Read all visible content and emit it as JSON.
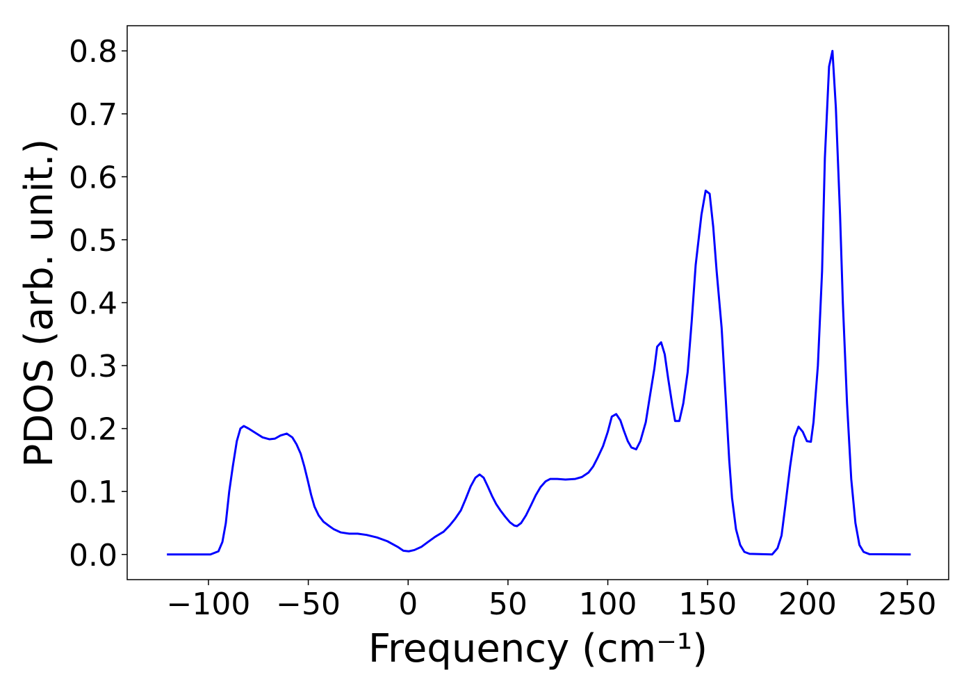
{
  "chart_data": {
    "type": "line",
    "xlabel": "Frequency (cm⁻¹)",
    "ylabel": "PDOS (arb. unit.)",
    "xlim": [
      -140.7,
      270.7
    ],
    "ylim": [
      -0.04,
      0.84
    ],
    "xticks": [
      {
        "value": -100,
        "label": "−100"
      },
      {
        "value": -50,
        "label": "−50"
      },
      0,
      50,
      100,
      150,
      200,
      250
    ],
    "yticks": [
      {
        "value": 0,
        "label": "0.0"
      },
      0.1,
      0.2,
      0.3,
      0.4,
      0.5,
      0.6,
      0.7,
      0.8
    ],
    "x": [
      -120.8,
      -99,
      -95,
      -93,
      -91.3,
      -89.6,
      -87.8,
      -85.8,
      -84,
      -82.3,
      -79.9,
      -76.4,
      -72.9,
      -69.4,
      -66.7,
      -63.9,
      -60.8,
      -58,
      -55.9,
      -53.8,
      -52,
      -50.3,
      -48.6,
      -46.9,
      -44.8,
      -42.4,
      -39.9,
      -37.2,
      -33.7,
      -29.5,
      -25.3,
      -20.8,
      -15.6,
      -10.4,
      -5.2,
      -2.4,
      0.3,
      3.1,
      6.6,
      10,
      13.5,
      17.7,
      20.8,
      23.6,
      26.4,
      28.8,
      31.3,
      33.7,
      35.8,
      37.8,
      39.9,
      42,
      44.1,
      46.2,
      48.6,
      51,
      53.1,
      54.5,
      56.6,
      59,
      61.5,
      63.9,
      66.3,
      68.8,
      71.2,
      74.7,
      78.8,
      83.7,
      87,
      90.3,
      92.7,
      94.8,
      97.6,
      100,
      102,
      104.2,
      106.3,
      108,
      110,
      111.8,
      114.2,
      116.3,
      119,
      121,
      123.3,
      124.7,
      126.7,
      128.5,
      130.2,
      132.3,
      133.7,
      135.8,
      137.8,
      140,
      142,
      144,
      146.9,
      149,
      151,
      152.8,
      154.5,
      157,
      159,
      160.8,
      162.2,
      164.2,
      166.3,
      168.4,
      171,
      182.3,
      185,
      187,
      189,
      191.3,
      193.4,
      195.5,
      197.6,
      199.7,
      201.7,
      203,
      205.2,
      207.3,
      208.7,
      210.8,
      212.5,
      214.2,
      216.3,
      217.7,
      219.8,
      221.9,
      224,
      226,
      228.1,
      231,
      251.7
    ],
    "series": [
      {
        "name": "PDOS",
        "color": "#0000ff",
        "values": [
          0,
          0,
          0.005,
          0.02,
          0.05,
          0.1,
          0.14,
          0.18,
          0.2,
          0.204,
          0.2,
          0.193,
          0.186,
          0.183,
          0.184,
          0.189,
          0.192,
          0.186,
          0.175,
          0.16,
          0.14,
          0.118,
          0.095,
          0.076,
          0.062,
          0.052,
          0.046,
          0.04,
          0.035,
          0.033,
          0.033,
          0.031,
          0.027,
          0.021,
          0.012,
          0.006,
          0.005,
          0.007,
          0.012,
          0.02,
          0.028,
          0.036,
          0.046,
          0.057,
          0.07,
          0.088,
          0.108,
          0.122,
          0.127,
          0.122,
          0.108,
          0.093,
          0.08,
          0.07,
          0.06,
          0.051,
          0.046,
          0.045,
          0.05,
          0.062,
          0.078,
          0.094,
          0.107,
          0.116,
          0.12,
          0.12,
          0.119,
          0.12,
          0.123,
          0.13,
          0.14,
          0.153,
          0.172,
          0.195,
          0.219,
          0.223,
          0.213,
          0.197,
          0.18,
          0.17,
          0.167,
          0.18,
          0.21,
          0.25,
          0.295,
          0.33,
          0.337,
          0.318,
          0.28,
          0.237,
          0.212,
          0.212,
          0.24,
          0.29,
          0.37,
          0.46,
          0.54,
          0.578,
          0.573,
          0.52,
          0.45,
          0.36,
          0.25,
          0.15,
          0.09,
          0.04,
          0.015,
          0.004,
          0.001,
          0,
          0.01,
          0.03,
          0.08,
          0.14,
          0.186,
          0.203,
          0.195,
          0.18,
          0.179,
          0.21,
          0.3,
          0.45,
          0.63,
          0.775,
          0.8,
          0.71,
          0.54,
          0.4,
          0.24,
          0.12,
          0.05,
          0.015,
          0.004,
          0.0005,
          0
        ]
      }
    ]
  }
}
